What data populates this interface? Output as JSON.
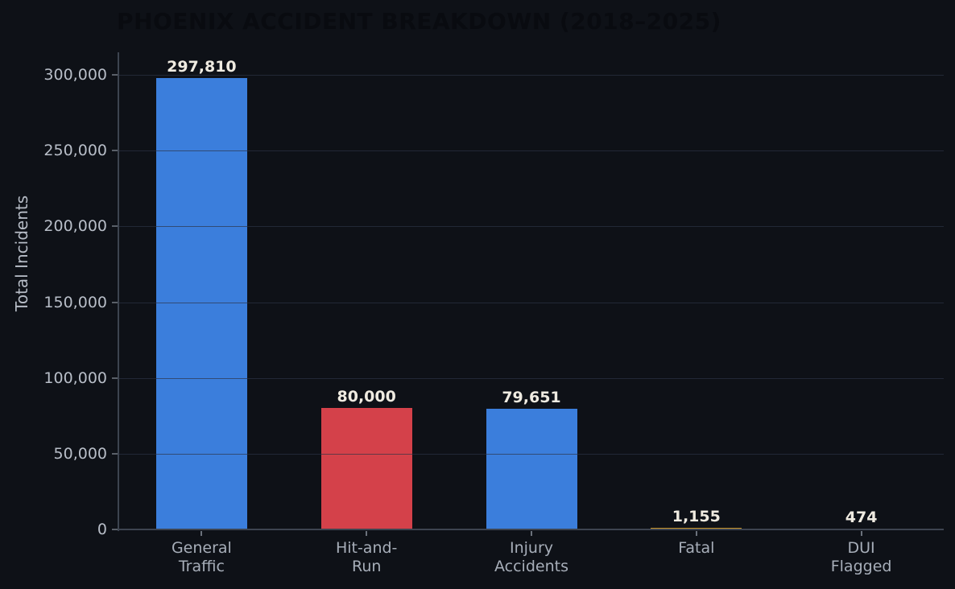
{
  "title": "PHOENIX ACCIDENT BREAKDOWN (2018–2025)",
  "colors": {
    "background": "#0e1117",
    "title": "#090b10",
    "grid": "rgba(44,52,70,0.68)",
    "spine": "#3d4450",
    "value_label": "#efebe1",
    "y_tick_label": "#b8bec8",
    "x_tick_label": "#a7aeb9"
  },
  "chart_data": {
    "type": "bar",
    "title": "PHOENIX ACCIDENT BREAKDOWN (2018–2025)",
    "xlabel": "",
    "ylabel": "Total Incidents",
    "ylim": [
      0,
      315000
    ],
    "grid": true,
    "legend": false,
    "categories": [
      "General Traffic",
      "Hit-and-Run",
      "Injury Accidents",
      "Fatal",
      "DUI Flagged"
    ],
    "category_label_lines": [
      [
        "General",
        "Traffic"
      ],
      [
        "Hit-and-",
        "Run"
      ],
      [
        "Injury",
        "Accidents"
      ],
      [
        "Fatal"
      ],
      [
        "DUI",
        "Flagged"
      ]
    ],
    "values": [
      297810,
      80000,
      79651,
      1155,
      474
    ],
    "value_labels": [
      "297,810",
      "80,000",
      "79,651",
      "1,155",
      "474"
    ],
    "bar_colors": [
      "#3b7edc",
      "#d4414a",
      "#3b7edc",
      "#c9952c",
      "#546e8c"
    ],
    "yticks": [
      0,
      50000,
      100000,
      150000,
      200000,
      250000,
      300000
    ],
    "ytick_labels": [
      "0",
      "50,000",
      "100,000",
      "150,000",
      "200,000",
      "250,000",
      "300,000"
    ]
  }
}
